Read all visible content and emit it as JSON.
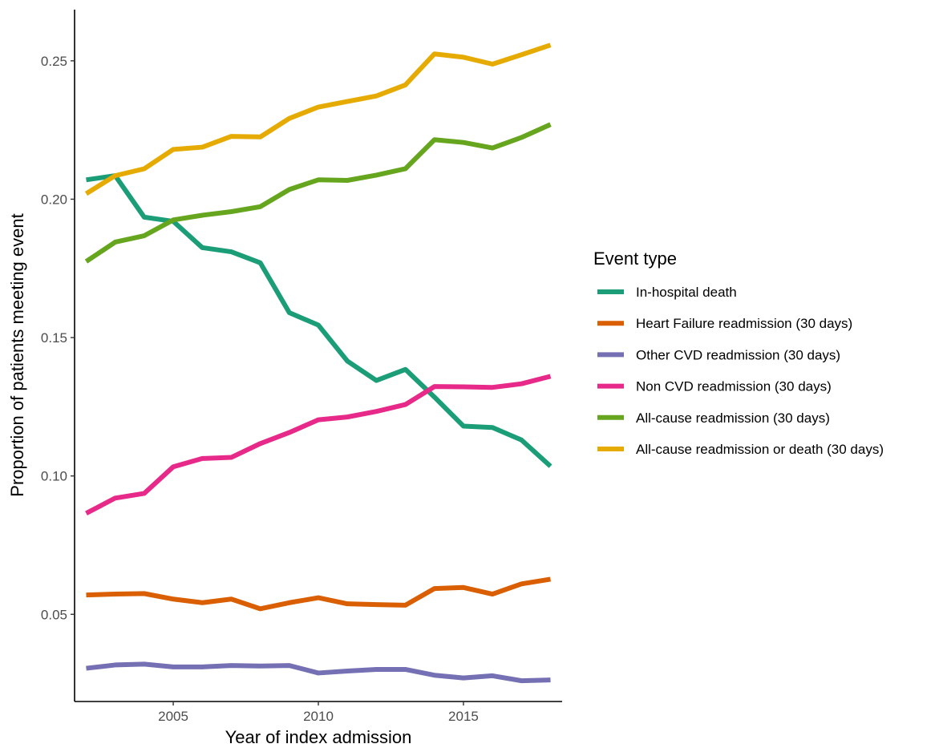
{
  "chart_data": {
    "type": "line",
    "xlabel": "Year of index admission",
    "ylabel": "Proportion of patients meeting event",
    "xlim": [
      2001.6,
      2018.4
    ],
    "ylim": [
      0.0185,
      0.2685
    ],
    "x_ticks": [
      2005,
      2010,
      2015
    ],
    "y_ticks": [
      0.05,
      0.1,
      0.15,
      0.2,
      0.25
    ],
    "x_tick_labels": [
      "2005",
      "2010",
      "2015"
    ],
    "y_tick_labels": [
      "0.05",
      "0.10",
      "0.15",
      "0.20",
      "0.25"
    ],
    "legend_title": "Event type",
    "legend_position": "right",
    "grid": false,
    "x": [
      2002,
      2003,
      2004,
      2005,
      2006,
      2007,
      2008,
      2009,
      2010,
      2011,
      2012,
      2013,
      2014,
      2015,
      2016,
      2017,
      2018
    ],
    "series": [
      {
        "name": "In-hospital death",
        "color": "#1b9e77",
        "values": [
          0.207,
          0.2085,
          0.1935,
          0.192,
          0.1825,
          0.181,
          0.177,
          0.159,
          0.1545,
          0.1415,
          0.1345,
          0.1385,
          0.1285,
          0.118,
          0.1175,
          0.113,
          0.1035
        ]
      },
      {
        "name": "Heart Failure readmission (30 days)",
        "color": "#d95f02",
        "values": [
          0.057,
          0.0573,
          0.0575,
          0.0555,
          0.0542,
          0.0555,
          0.052,
          0.0542,
          0.056,
          0.0538,
          0.0535,
          0.0533,
          0.0593,
          0.0597,
          0.0573,
          0.061,
          0.0627
        ]
      },
      {
        "name": "Other CVD readmission (30 days)",
        "color": "#7570b3",
        "values": [
          0.0305,
          0.0317,
          0.032,
          0.031,
          0.031,
          0.0315,
          0.0313,
          0.0315,
          0.0288,
          0.0295,
          0.0301,
          0.0301,
          0.028,
          0.027,
          0.0278,
          0.026,
          0.0263
        ]
      },
      {
        "name": "Non CVD readmission (30 days)",
        "color": "#e7298a",
        "values": [
          0.0865,
          0.092,
          0.0937,
          0.1033,
          0.1063,
          0.1067,
          0.1117,
          0.1157,
          0.1203,
          0.1213,
          0.1233,
          0.1258,
          0.1323,
          0.1322,
          0.132,
          0.1333,
          0.136
        ]
      },
      {
        "name": "All-cause readmission (30 days)",
        "color": "#66a61e",
        "values": [
          0.1775,
          0.1845,
          0.1868,
          0.1925,
          0.1942,
          0.1955,
          0.1973,
          0.2035,
          0.207,
          0.2068,
          0.2087,
          0.211,
          0.2215,
          0.2205,
          0.2185,
          0.2223,
          0.227
        ]
      },
      {
        "name": "All-cause readmission or death (30 days)",
        "color": "#e6ab02",
        "values": [
          0.202,
          0.2085,
          0.211,
          0.218,
          0.2188,
          0.2227,
          0.2225,
          0.2292,
          0.2333,
          0.2353,
          0.2373,
          0.2413,
          0.2525,
          0.2513,
          0.2488,
          0.2522,
          0.2557
        ]
      }
    ]
  }
}
